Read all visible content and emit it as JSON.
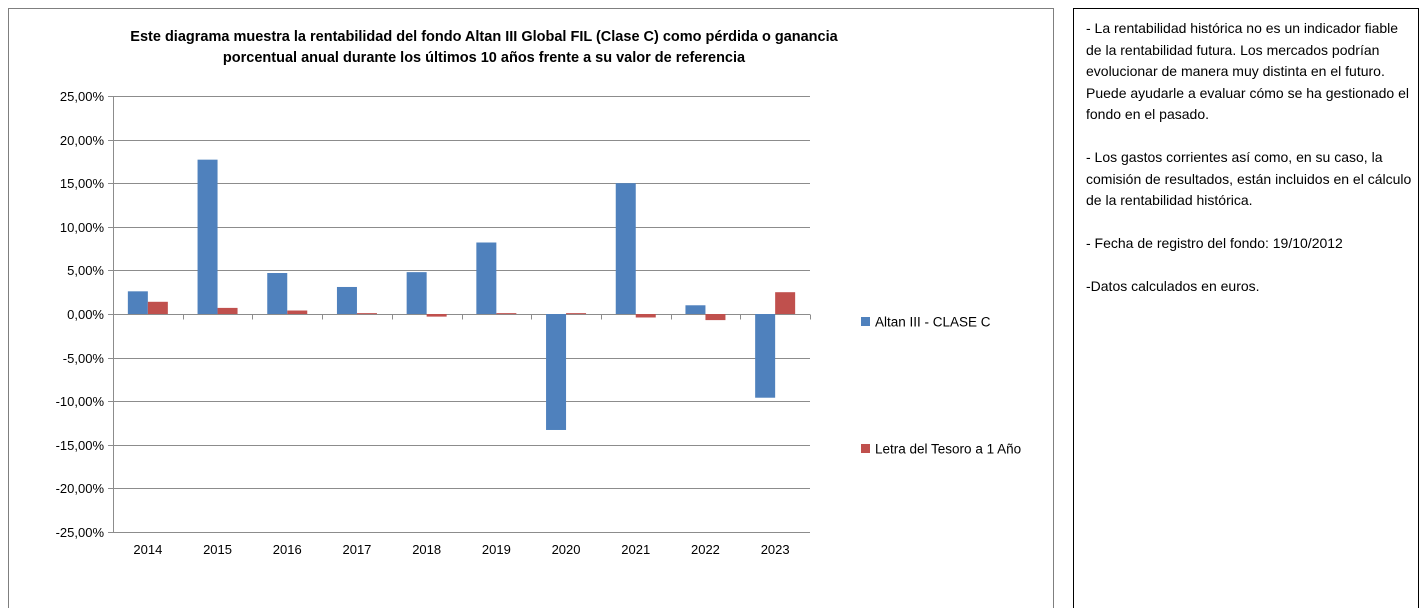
{
  "chart_data": {
    "type": "bar",
    "title_lines": [
      "Este diagrama muestra la rentabilidad del fondo Altan III  Global FIL (Clase C) como pérdida o ganancia",
      "porcentual anual durante los últimos 10 años frente a su valor de referencia"
    ],
    "xlabel": "",
    "ylabel": "",
    "categories": [
      "2014",
      "2015",
      "2016",
      "2017",
      "2018",
      "2019",
      "2020",
      "2021",
      "2022",
      "2023"
    ],
    "series": [
      {
        "name": "Altan III - CLASE C",
        "color": "#4f81bd",
        "values": [
          2.6,
          17.7,
          4.7,
          3.1,
          4.8,
          8.2,
          -13.3,
          15.0,
          1.0,
          -9.6
        ]
      },
      {
        "name": "Letra del Tesoro a 1 Año",
        "color": "#c0504d",
        "values": [
          1.4,
          0.7,
          0.4,
          0.1,
          -0.3,
          0.1,
          0.1,
          -0.4,
          -0.7,
          2.5
        ]
      }
    ],
    "ylim": [
      -25,
      25
    ],
    "ytick_step": 5,
    "ytick_labels": [
      "25,00%",
      "20,00%",
      "15,00%",
      "10,00%",
      "5,00%",
      "0,00%",
      "-5,00%",
      "-10,00%",
      "-15,00%",
      "-20,00%",
      "-25,00%"
    ],
    "grid": true,
    "legend_position": "right"
  },
  "notes": [
    "-  La rentabilidad histórica no es un indicador fiable de la rentabilidad futura. Los mercados podrían evolucionar de manera muy distinta en el futuro. Puede ayudarle a evaluar cómo se ha gestionado el fondo en el pasado.",
    "- Los gastos corrientes así como, en su caso, la comisión de resultados, están incluidos en el cálculo de la rentabilidad histórica.",
    "- Fecha de registro del fondo: 19/10/2012",
    "-Datos calculados en euros."
  ]
}
